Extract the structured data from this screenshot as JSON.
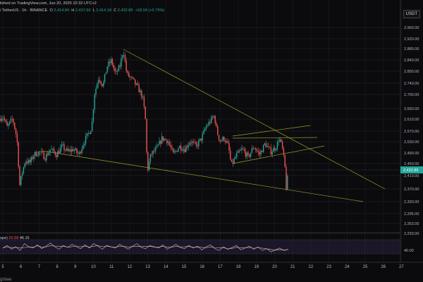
{
  "header": {
    "published": "lished on TradingView.com, Jun 20, 2025 22:32 UTC+2",
    "symbol": "/ TetherUS · 1h · BINANCE",
    "o": "2,414.84",
    "h": "2,437.60",
    "l": "2,414.18",
    "c": "2,432.89",
    "change": "+18.04 (+0.75%)"
  },
  "currency_button": "USDT",
  "rsi_label": {
    "prefix": "ope)",
    "v1": "50.58",
    "v2": "46.15"
  },
  "footer": "gView",
  "colors": {
    "up": "#26a69a",
    "down": "#ef5350",
    "trendline": "#9aa026",
    "rsi": "#b39ddb",
    "rsi_band": "#3a2c5a",
    "bg": "#0b0b0e"
  },
  "chart_data": {
    "type": "candlestick",
    "y_ticks": [
      "2,960.00",
      "2,920.00",
      "2,880.00",
      "2,840.00",
      "2,800.00",
      "2,740.00",
      "2,700.00",
      "2,650.00",
      "2,610.00",
      "2,570.00",
      "2,530.00",
      "2,490.00",
      "2,450.00",
      "2,410.00",
      "2,370.00",
      "2,330.00",
      "2,295.00",
      "2,263.00",
      "2,233.00"
    ],
    "x_ticks": [
      "5",
      "6",
      "7",
      "8",
      "9",
      "10",
      "11",
      "12",
      "13",
      "14",
      "15",
      "16",
      "17",
      "18",
      "19",
      "20",
      "21",
      "22",
      "23",
      "24",
      "25",
      "26",
      "27"
    ],
    "last_price": "2,432.89",
    "rsi_ticks": [
      "40.00"
    ],
    "price_path": [
      [
        0,
        2630
      ],
      [
        4,
        2640
      ],
      [
        10,
        2600
      ],
      [
        18,
        2630
      ],
      [
        24,
        2560
      ],
      [
        28,
        2390
      ],
      [
        31,
        2430
      ],
      [
        36,
        2480
      ],
      [
        42,
        2470
      ],
      [
        48,
        2500
      ],
      [
        56,
        2510
      ],
      [
        64,
        2490
      ],
      [
        72,
        2520
      ],
      [
        80,
        2500
      ],
      [
        88,
        2530
      ],
      [
        96,
        2510
      ],
      [
        104,
        2520
      ],
      [
        112,
        2500
      ],
      [
        118,
        2540
      ],
      [
        124,
        2570
      ],
      [
        130,
        2600
      ],
      [
        134,
        2720
      ],
      [
        140,
        2780
      ],
      [
        146,
        2750
      ],
      [
        152,
        2820
      ],
      [
        158,
        2840
      ],
      [
        164,
        2790
      ],
      [
        170,
        2820
      ],
      [
        175,
        2880
      ],
      [
        180,
        2790
      ],
      [
        188,
        2770
      ],
      [
        196,
        2740
      ],
      [
        202,
        2710
      ],
      [
        206,
        2640
      ],
      [
        209,
        2440
      ],
      [
        214,
        2500
      ],
      [
        222,
        2520
      ],
      [
        230,
        2560
      ],
      [
        238,
        2550
      ],
      [
        246,
        2500
      ],
      [
        254,
        2530
      ],
      [
        262,
        2520
      ],
      [
        270,
        2550
      ],
      [
        278,
        2530
      ],
      [
        286,
        2560
      ],
      [
        292,
        2600
      ],
      [
        298,
        2620
      ],
      [
        304,
        2640
      ],
      [
        308,
        2580
      ],
      [
        312,
        2550
      ],
      [
        318,
        2560
      ],
      [
        324,
        2530
      ],
      [
        328,
        2460
      ],
      [
        336,
        2500
      ],
      [
        344,
        2520
      ],
      [
        352,
        2490
      ],
      [
        360,
        2530
      ],
      [
        368,
        2500
      ],
      [
        376,
        2540
      ],
      [
        384,
        2510
      ],
      [
        392,
        2530
      ],
      [
        396,
        2560
      ],
      [
        400,
        2530
      ],
      [
        404,
        2460
      ],
      [
        406,
        2380
      ],
      [
        409,
        2433
      ]
    ],
    "rsi_values": [
      48,
      52,
      46,
      50,
      44,
      55,
      50,
      48,
      53,
      47,
      51,
      56,
      50,
      46,
      52,
      49,
      54,
      50,
      47,
      53,
      48,
      55,
      51,
      46,
      52,
      50,
      48,
      54,
      50,
      46,
      51,
      55,
      49,
      47,
      52,
      50,
      48,
      53,
      46,
      50,
      54,
      49,
      47,
      52,
      48,
      51,
      45,
      50,
      53,
      47,
      44,
      50,
      46,
      49,
      52,
      45,
      48,
      51,
      46,
      50,
      44,
      47,
      42,
      45,
      48,
      44,
      46
    ]
  }
}
